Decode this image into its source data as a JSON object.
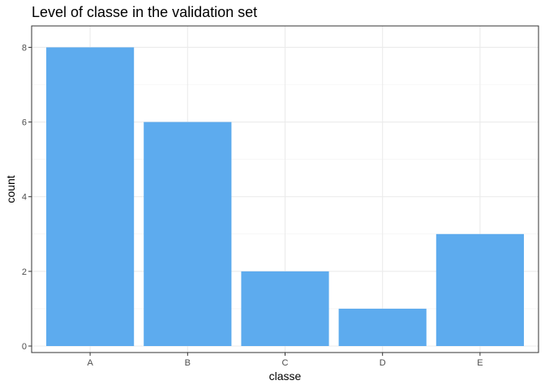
{
  "chart_data": {
    "type": "bar",
    "title": "Level of classe in the validation set",
    "xlabel": "classe",
    "ylabel": "count",
    "categories": [
      "A",
      "B",
      "C",
      "D",
      "E"
    ],
    "values": [
      8,
      6,
      2,
      1,
      3
    ],
    "ylim": [
      0,
      8.4
    ],
    "yticks": [
      0,
      2,
      4,
      6,
      8
    ],
    "bar_color": "#5dabee",
    "grid": true,
    "legend": "none"
  }
}
